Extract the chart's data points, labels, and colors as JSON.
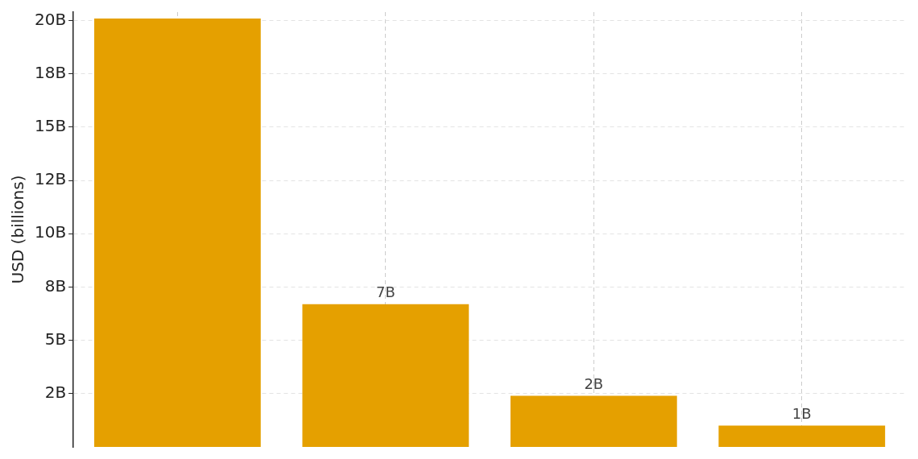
{
  "chart_data": {
    "type": "bar",
    "ylabel": "USD (billions)",
    "categories": [
      null,
      null,
      null,
      null
    ],
    "values": [
      20.1,
      6.7,
      2.4,
      1.0
    ],
    "value_labels": [
      null,
      "7B",
      "2B",
      "1B"
    ],
    "color": "#e5a000",
    "ylim": [
      0,
      20.4
    ],
    "yticks": [
      {
        "value": 2.5,
        "label": "2B"
      },
      {
        "value": 5,
        "label": "5B"
      },
      {
        "value": 7.5,
        "label": "8B"
      },
      {
        "value": 10,
        "label": "10B"
      },
      {
        "value": 12.5,
        "label": "12B"
      },
      {
        "value": 15,
        "label": "15B"
      },
      {
        "value": 17.5,
        "label": "18B"
      },
      {
        "value": 20,
        "label": "20B"
      }
    ],
    "grid": true
  }
}
